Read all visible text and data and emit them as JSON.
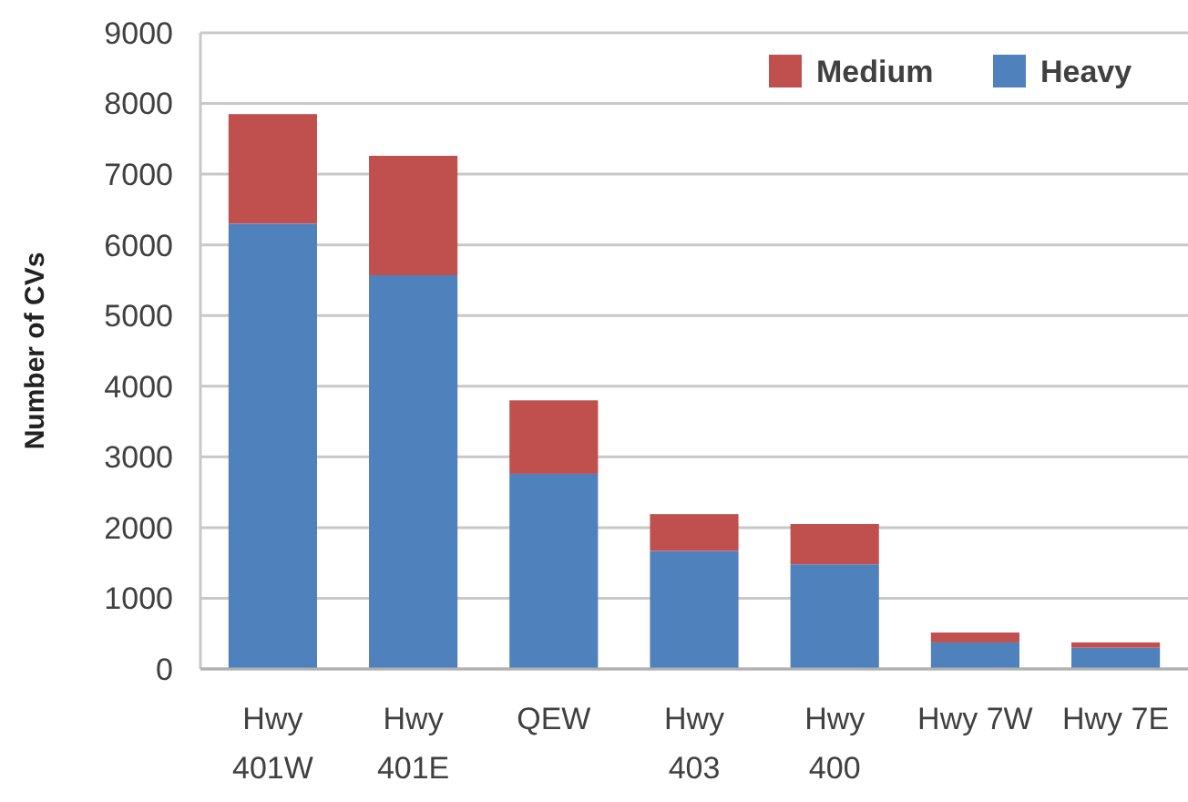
{
  "chart_data": {
    "type": "bar",
    "stacked": true,
    "ylabel": "Number of CVs",
    "categories": [
      "Hwy 401W",
      "Hwy 401E",
      "QEW",
      "Hwy 403",
      "Hwy 400",
      "Hwy 7W",
      "Hwy 7E"
    ],
    "series": [
      {
        "name": "Heavy",
        "color": "#4f81bd",
        "values": [
          6300,
          5570,
          2760,
          1670,
          1480,
          375,
          300
        ]
      },
      {
        "name": "Medium",
        "color": "#c0504d",
        "values": [
          1550,
          1690,
          1040,
          520,
          570,
          140,
          75
        ]
      }
    ],
    "ylim": [
      0,
      9000
    ],
    "yticks": [
      0,
      1000,
      2000,
      3000,
      4000,
      5000,
      6000,
      7000,
      8000,
      9000
    ],
    "grid": "y",
    "legend": "top right"
  }
}
